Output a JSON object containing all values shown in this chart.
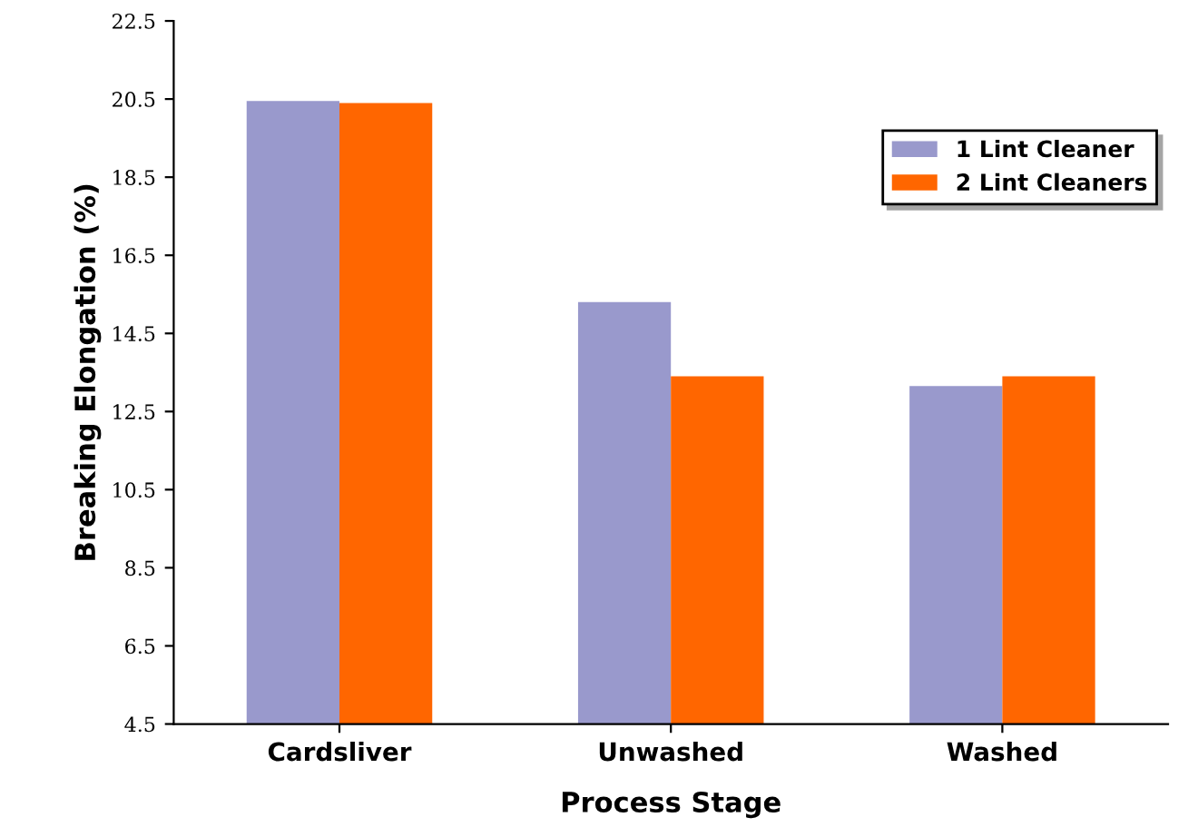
{
  "chart_data": {
    "type": "bar",
    "xlabel": "Process Stage",
    "ylabel": "Breaking Elongation (%)",
    "categories": [
      "Cardsliver",
      "Unwashed",
      "Washed"
    ],
    "series": [
      {
        "name": "1 Lint Cleaner",
        "color": "#9999cc",
        "values": [
          20.45,
          15.3,
          13.15
        ]
      },
      {
        "name": "2 Lint Cleaners",
        "color": "#ff6600",
        "values": [
          20.4,
          13.4,
          13.4
        ]
      }
    ],
    "ylim": [
      4.5,
      22.5
    ],
    "yticks": [
      4.5,
      6.5,
      8.5,
      10.5,
      12.5,
      14.5,
      16.5,
      18.5,
      20.5,
      22.5
    ],
    "grid": false,
    "legend": "upper right"
  }
}
